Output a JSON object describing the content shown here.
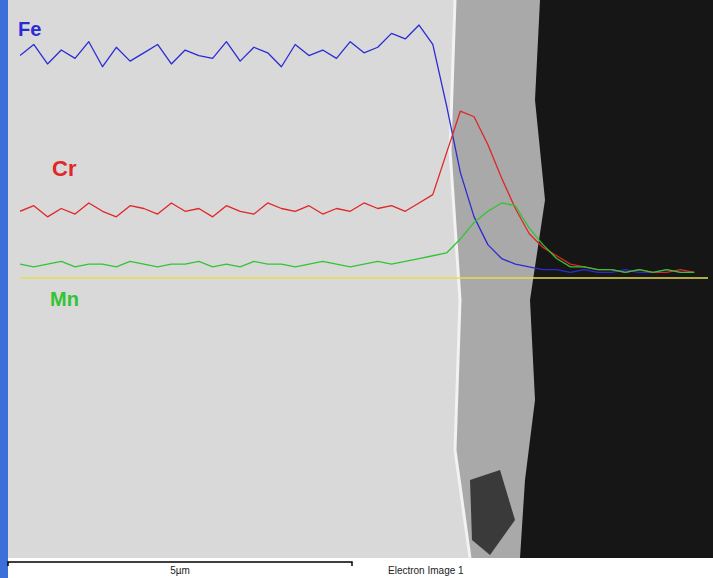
{
  "chart_data": {
    "type": "line",
    "annotations": [
      "5µm",
      "Electron Image 1"
    ],
    "x": [
      0,
      0.2,
      0.4,
      0.6,
      0.8,
      1,
      1.2,
      1.4,
      1.6,
      1.8,
      2,
      2.2,
      2.4,
      2.6,
      2.8,
      3,
      3.2,
      3.4,
      3.6,
      3.8,
      4,
      4.2,
      4.4,
      4.6,
      4.8,
      5,
      5.2,
      5.4,
      5.6,
      5.8,
      6,
      6.2,
      6.4,
      6.6,
      6.8,
      7,
      7.2,
      7.4,
      7.6,
      7.8,
      8,
      8.2,
      8.4,
      8.6,
      8.8,
      9,
      9.2,
      9.4,
      9.6,
      9.8
    ],
    "xlim": [
      0,
      10
    ],
    "ylim": [
      0,
      100
    ],
    "grid": false,
    "tick_labels": false,
    "series": [
      {
        "name": "Fe",
        "color": "#2b2bd6",
        "values": [
          80,
          84,
          77,
          82,
          79,
          85,
          76,
          83,
          78,
          81,
          84,
          77,
          82,
          80,
          79,
          85,
          78,
          83,
          81,
          76,
          84,
          80,
          82,
          79,
          85,
          81,
          83,
          88,
          86,
          91,
          84,
          62,
          38,
          22,
          12,
          7,
          5,
          4,
          3,
          3,
          2,
          3,
          2,
          2,
          3,
          2,
          2,
          3,
          2,
          2
        ]
      },
      {
        "name": "Cr",
        "color": "#e02626",
        "values": [
          24,
          26,
          22,
          25,
          23,
          27,
          24,
          22,
          26,
          25,
          23,
          27,
          24,
          25,
          22,
          26,
          24,
          23,
          27,
          25,
          24,
          26,
          23,
          25,
          24,
          27,
          25,
          26,
          24,
          27,
          30,
          45,
          60,
          58,
          48,
          36,
          25,
          16,
          11,
          8,
          5,
          4,
          3,
          3,
          2,
          3,
          2,
          2,
          3,
          2
        ]
      },
      {
        "name": "Mn",
        "color": "#33c433",
        "values": [
          5,
          4,
          5,
          6,
          4,
          5,
          5,
          4,
          6,
          5,
          4,
          5,
          5,
          6,
          4,
          5,
          4,
          6,
          5,
          5,
          4,
          5,
          6,
          5,
          4,
          5,
          6,
          5,
          6,
          7,
          8,
          9,
          14,
          20,
          24,
          27,
          26,
          18,
          12,
          7,
          4,
          4,
          3,
          3,
          2,
          3,
          2,
          3,
          2,
          2
        ]
      }
    ]
  }
}
